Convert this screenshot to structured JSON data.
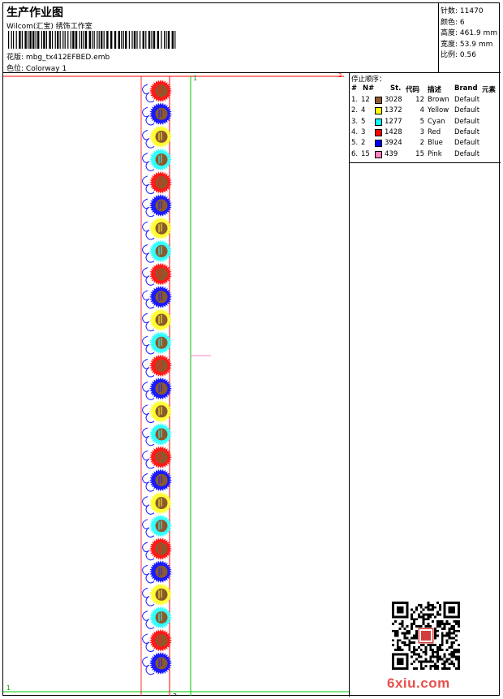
{
  "header": {
    "title": "生产作业图",
    "company": "Wilcom(汇宝) 绣饰工作室",
    "file_label": "花版:",
    "file_name": "mbg_tx412EFBED.emb",
    "colorway_label": "色位:",
    "colorway": "Colorway 1"
  },
  "stats": [
    {
      "label": "针数:",
      "value": "11470"
    },
    {
      "label": "颜色:",
      "value": "6"
    },
    {
      "label": "高度:",
      "value": "461.9 mm"
    },
    {
      "label": "宽度:",
      "value": "53.9 mm"
    },
    {
      "label": "比例:",
      "value": "0.56"
    }
  ],
  "canvas": {
    "marker_top": "1",
    "marker_bottom_left": "1",
    "marker_bottom": "2",
    "marker_corner": "2",
    "motif_sequence": [
      "Red",
      "Blue",
      "Yellow",
      "Cyan",
      "Red",
      "Blue",
      "Yellow",
      "Cyan",
      "Red",
      "Blue",
      "Yellow",
      "Cyan",
      "Red",
      "Blue",
      "Yellow",
      "Cyan",
      "Red",
      "Blue",
      "Yellow",
      "Cyan",
      "Red",
      "Blue",
      "Yellow",
      "Cyan",
      "Red",
      "Blue"
    ]
  },
  "panel": {
    "title": "停止顺序：",
    "columns": [
      "#",
      "N#",
      "St.",
      "代码",
      "描述",
      "Brand",
      "元素"
    ],
    "rows": [
      {
        "idx": "1.",
        "n": "12",
        "color": "#8b5a2b",
        "st": "3028",
        "code": "12",
        "desc": "Brown",
        "brand": "Default"
      },
      {
        "idx": "2.",
        "n": "4",
        "color": "#ffff00",
        "st": "1372",
        "code": "4",
        "desc": "Yellow",
        "brand": "Default"
      },
      {
        "idx": "3.",
        "n": "5",
        "color": "#00ffff",
        "st": "1277",
        "code": "5",
        "desc": "Cyan",
        "brand": "Default"
      },
      {
        "idx": "4.",
        "n": "3",
        "color": "#ff0000",
        "st": "1428",
        "code": "3",
        "desc": "Red",
        "brand": "Default"
      },
      {
        "idx": "5.",
        "n": "2",
        "color": "#0000ff",
        "st": "3924",
        "code": "2",
        "desc": "Blue",
        "brand": "Default"
      },
      {
        "idx": "6.",
        "n": "15",
        "color": "#ff80c0",
        "st": "439",
        "code": "15",
        "desc": "Pink",
        "brand": "Default"
      }
    ]
  },
  "watermark": {
    "text": "6xiu.com"
  },
  "colors": {
    "Red": "#ff1a1a",
    "Blue": "#1a1aff",
    "Yellow": "#ffff33",
    "Cyan": "#33ffff",
    "Brown": "#8b5a2b",
    "Pink": "#ff80c0",
    "guide_green": "#00c800",
    "guide_red": "#ff0000",
    "watermark": "#e8504c"
  }
}
